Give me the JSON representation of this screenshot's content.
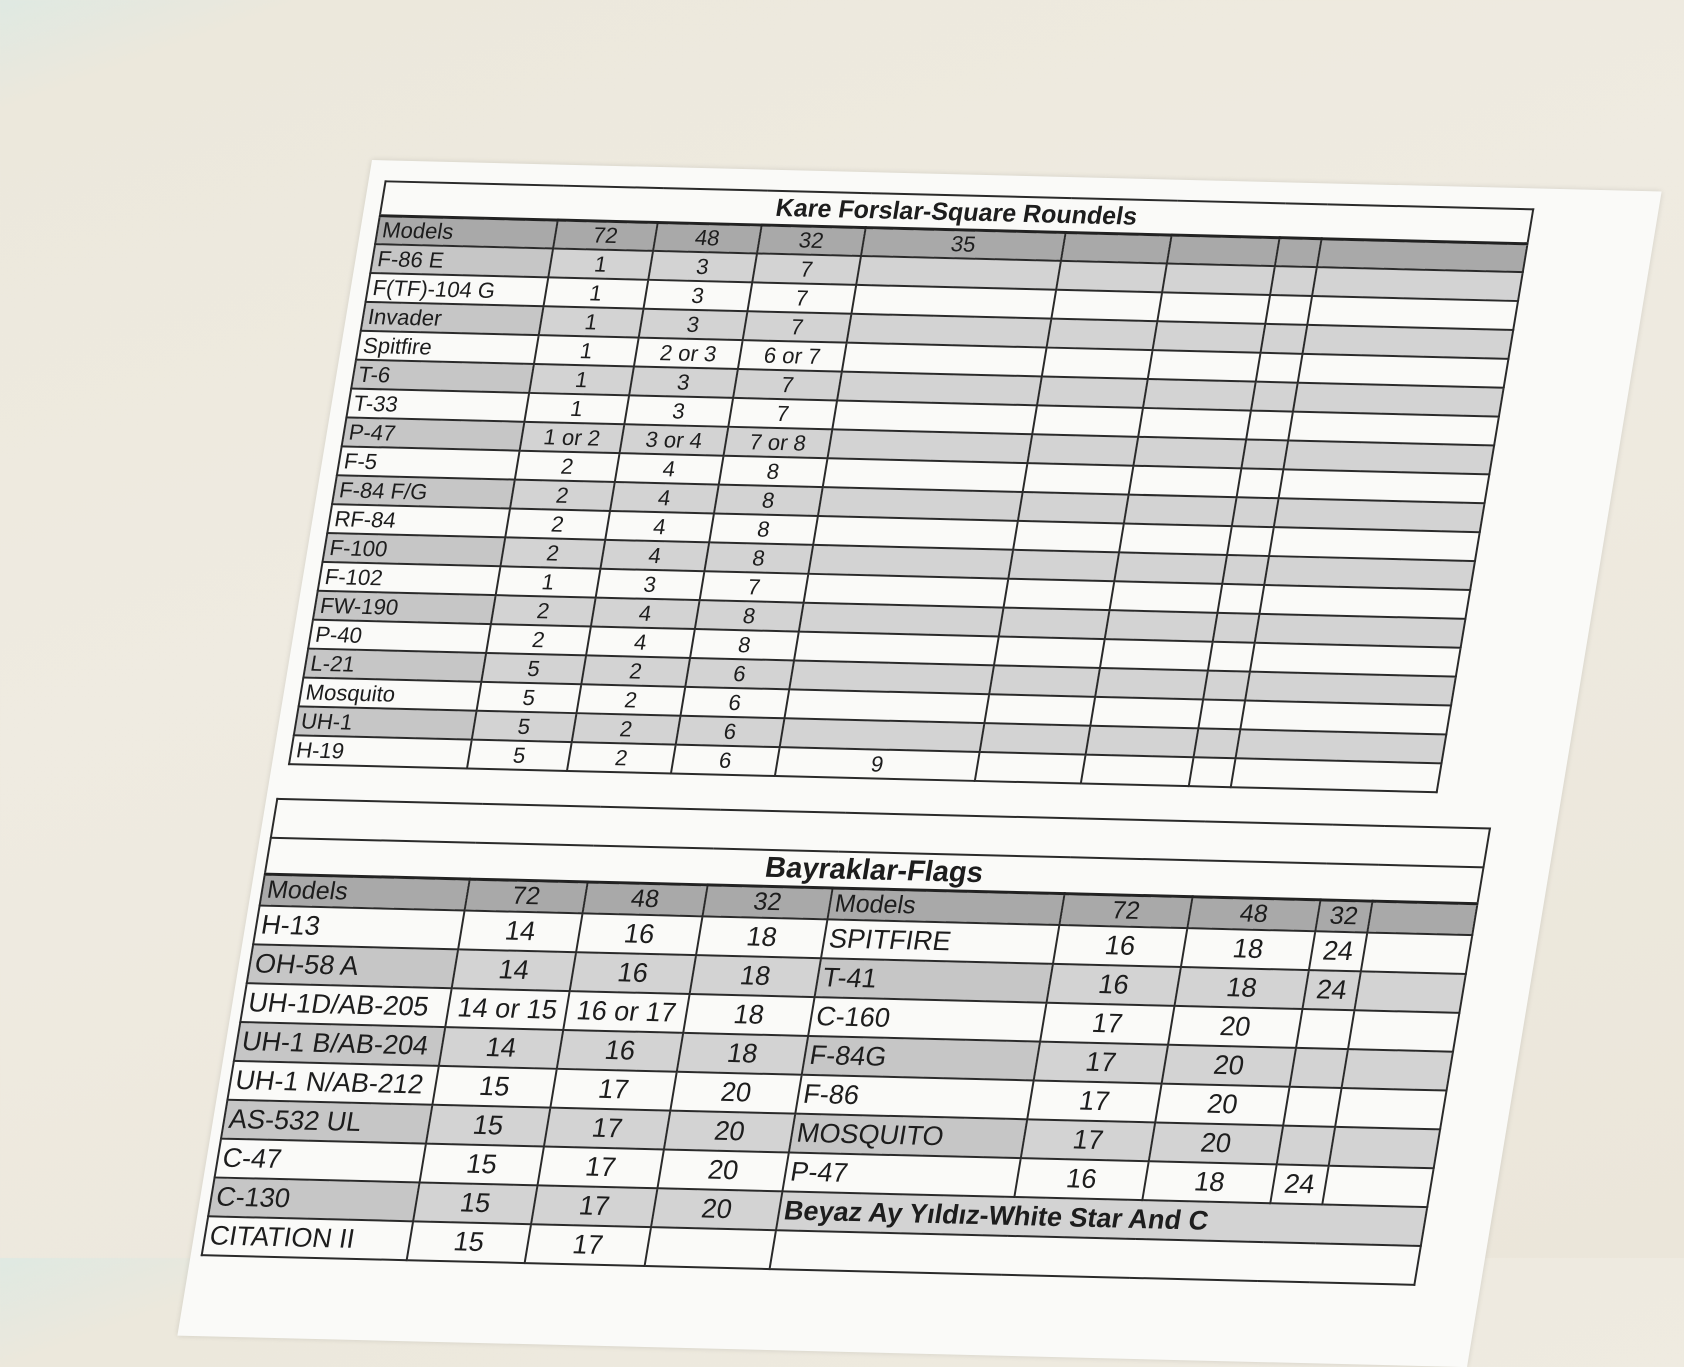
{
  "roundels": {
    "title": "Kare Forslar-Square Roundels",
    "headers": [
      "Models",
      "72",
      "48",
      "32",
      "35",
      "",
      "",
      "",
      ""
    ],
    "rows": [
      [
        "F-86 E",
        "1",
        "3",
        "7",
        ""
      ],
      [
        "F(TF)-104 G",
        "1",
        "3",
        "7",
        ""
      ],
      [
        "Invader",
        "1",
        "3",
        "7",
        ""
      ],
      [
        "Spitfire",
        "1",
        "2 or 3",
        "6 or 7",
        ""
      ],
      [
        "T-6",
        "1",
        "3",
        "7",
        ""
      ],
      [
        "T-33",
        "1",
        "3",
        "7",
        ""
      ],
      [
        "P-47",
        "1 or 2",
        "3 or 4",
        "7 or 8",
        ""
      ],
      [
        "F-5",
        "2",
        "4",
        "8",
        ""
      ],
      [
        "F-84 F/G",
        "2",
        "4",
        "8",
        ""
      ],
      [
        "RF-84",
        "2",
        "4",
        "8",
        ""
      ],
      [
        "F-100",
        "2",
        "4",
        "8",
        ""
      ],
      [
        "F-102",
        "1",
        "3",
        "7",
        ""
      ],
      [
        "FW-190",
        "2",
        "4",
        "8",
        ""
      ],
      [
        "P-40",
        "2",
        "4",
        "8",
        ""
      ],
      [
        "L-21",
        "5",
        "2",
        "6",
        ""
      ],
      [
        "Mosquito",
        "5",
        "2",
        "6",
        ""
      ],
      [
        "UH-1",
        "5",
        "2",
        "6",
        ""
      ],
      [
        "H-19",
        "5",
        "2",
        "6",
        "9"
      ]
    ]
  },
  "flags": {
    "title": "Bayraklar-Flags",
    "left_headers": [
      "Models",
      "72",
      "48",
      "32"
    ],
    "right_headers": [
      "Models",
      "72",
      "48",
      "32",
      ""
    ],
    "left_rows": [
      [
        "H-13",
        "14",
        "16",
        "18"
      ],
      [
        "OH-58 A",
        "14",
        "16",
        "18"
      ],
      [
        "UH-1D/AB-205",
        "14 or 15",
        "16 or 17",
        "18"
      ],
      [
        "UH-1 B/AB-204",
        "14",
        "16",
        "18"
      ],
      [
        "UH-1 N/AB-212",
        "15",
        "17",
        "20"
      ],
      [
        "AS-532 UL",
        "15",
        "17",
        "20"
      ],
      [
        "C-47",
        "15",
        "17",
        "20"
      ],
      [
        "C-130",
        "15",
        "17",
        "20"
      ],
      [
        "CITATION II",
        "15",
        "17",
        ""
      ]
    ],
    "right_rows": [
      [
        "SPITFIRE",
        "16",
        "18",
        "24"
      ],
      [
        "T-41",
        "16",
        "18",
        "24"
      ],
      [
        "C-160",
        "17",
        "20",
        ""
      ],
      [
        "F-84G",
        "17",
        "20",
        ""
      ],
      [
        "F-86",
        "17",
        "20",
        ""
      ],
      [
        "MOSQUITO",
        "17",
        "20",
        ""
      ],
      [
        "P-47",
        "16",
        "18",
        "24"
      ]
    ],
    "next_section_title": "Beyaz Ay Yıldız-White Star And C"
  }
}
